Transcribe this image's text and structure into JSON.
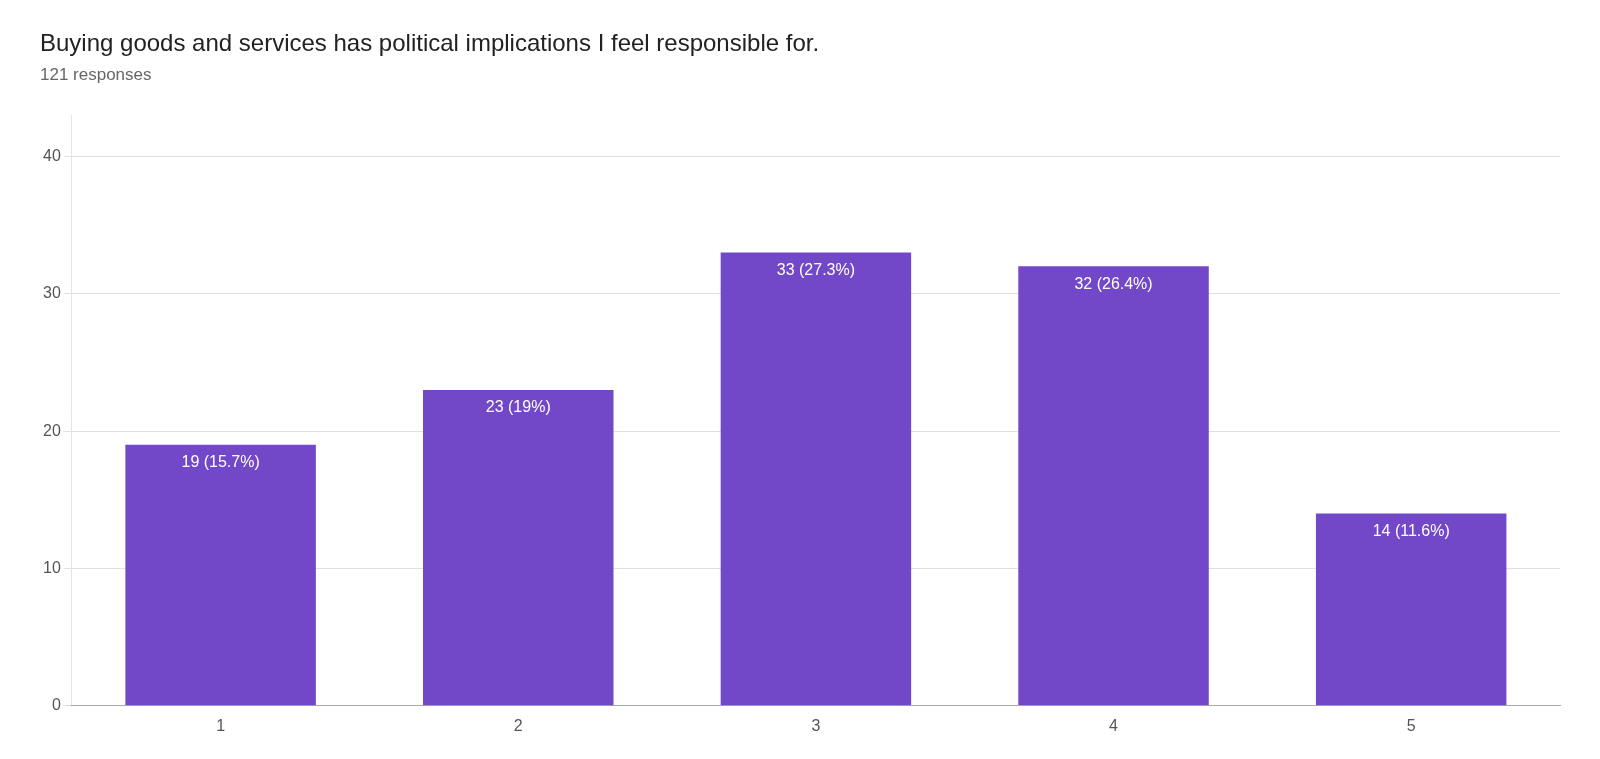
{
  "chart_data": {
    "type": "bar",
    "title": "Buying goods and services has political implications I feel responsible for.",
    "subtitle": "121 responses",
    "categories": [
      "1",
      "2",
      "3",
      "4",
      "5"
    ],
    "values": [
      19,
      23,
      33,
      32,
      14
    ],
    "value_labels": [
      "19 (15.7%)",
      "23 (19%)",
      "33 (27.3%)",
      "32 (26.4%)",
      "14 (11.6%)"
    ],
    "data_labels": true,
    "color": "#7248c8",
    "ylim": [
      0,
      43
    ],
    "yticks": [
      0,
      10,
      20,
      30,
      40
    ],
    "grid": true
  }
}
